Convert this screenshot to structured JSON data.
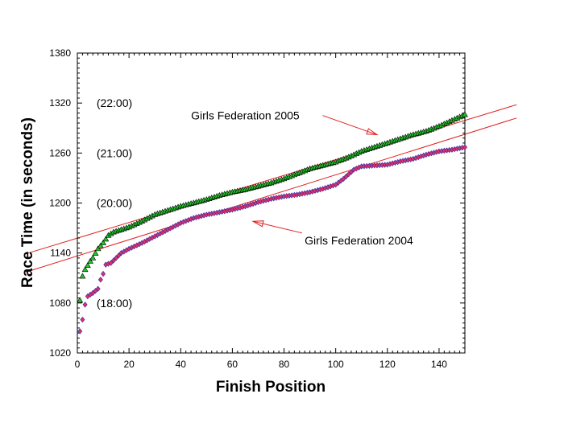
{
  "chart_data": {
    "type": "scatter",
    "xlabel": "Finish Position",
    "ylabel": "Race Time (in seconds)",
    "xlim": [
      0,
      150
    ],
    "ylim": [
      1020,
      1380
    ],
    "x_ticks": [
      0,
      20,
      40,
      60,
      80,
      100,
      120,
      140
    ],
    "y_ticks": [
      1020,
      1080,
      1140,
      1200,
      1260,
      1320,
      1380
    ],
    "grid": false,
    "time_annotations": [
      {
        "label": "(22:00)",
        "value": 1320
      },
      {
        "label": "(21:00)",
        "value": 1260
      },
      {
        "label": "(20:00)",
        "value": 1200
      },
      {
        "label": "(18:00)",
        "value": 1080
      }
    ],
    "series": [
      {
        "name": "Girls Federation 2005",
        "marker": "triangle",
        "fill": "#22c22a",
        "stroke": "#000000",
        "start_position": 1,
        "anchors": [
          [
            1,
            1083
          ],
          [
            2,
            1112
          ],
          [
            3,
            1120
          ],
          [
            4,
            1125
          ],
          [
            5,
            1130
          ],
          [
            6,
            1134
          ],
          [
            8,
            1145
          ],
          [
            10,
            1152
          ],
          [
            12,
            1161
          ],
          [
            14,
            1165
          ],
          [
            16,
            1167
          ],
          [
            20,
            1171
          ],
          [
            25,
            1178
          ],
          [
            30,
            1186
          ],
          [
            35,
            1191
          ],
          [
            40,
            1196
          ],
          [
            45,
            1200
          ],
          [
            50,
            1204
          ],
          [
            55,
            1209
          ],
          [
            60,
            1213
          ],
          [
            65,
            1216
          ],
          [
            70,
            1220
          ],
          [
            75,
            1224
          ],
          [
            80,
            1229
          ],
          [
            85,
            1235
          ],
          [
            90,
            1241
          ],
          [
            95,
            1245
          ],
          [
            100,
            1249
          ],
          [
            105,
            1255
          ],
          [
            110,
            1262
          ],
          [
            115,
            1267
          ],
          [
            120,
            1272
          ],
          [
            125,
            1277
          ],
          [
            130,
            1282
          ],
          [
            135,
            1286
          ],
          [
            140,
            1292
          ],
          [
            145,
            1299
          ],
          [
            150,
            1306
          ]
        ]
      },
      {
        "name": "Girls Federation 2004",
        "marker": "diamond",
        "fill": "#e03060",
        "stroke": "#2a2ab0",
        "start_position": 1,
        "anchors": [
          [
            1,
            1046
          ],
          [
            2,
            1060
          ],
          [
            3,
            1078
          ],
          [
            4,
            1088
          ],
          [
            6,
            1092
          ],
          [
            8,
            1097
          ],
          [
            9,
            1108
          ],
          [
            10,
            1115
          ],
          [
            11,
            1126
          ],
          [
            13,
            1128
          ],
          [
            15,
            1134
          ],
          [
            17,
            1140
          ],
          [
            20,
            1145
          ],
          [
            25,
            1152
          ],
          [
            30,
            1160
          ],
          [
            35,
            1168
          ],
          [
            40,
            1176
          ],
          [
            45,
            1182
          ],
          [
            50,
            1186
          ],
          [
            55,
            1189
          ],
          [
            60,
            1192
          ],
          [
            65,
            1196
          ],
          [
            70,
            1201
          ],
          [
            75,
            1205
          ],
          [
            80,
            1208
          ],
          [
            85,
            1210
          ],
          [
            90,
            1213
          ],
          [
            95,
            1217
          ],
          [
            100,
            1222
          ],
          [
            103,
            1229
          ],
          [
            107,
            1240
          ],
          [
            110,
            1244
          ],
          [
            115,
            1245
          ],
          [
            120,
            1246
          ],
          [
            125,
            1250
          ],
          [
            130,
            1253
          ],
          [
            135,
            1258
          ],
          [
            140,
            1262
          ],
          [
            145,
            1264
          ],
          [
            150,
            1267
          ]
        ]
      }
    ],
    "trend_lines": [
      {
        "name": "upper-trend-line",
        "color": "#e02020",
        "from": [
          -20,
          1139
        ],
        "to": [
          170,
          1318
        ]
      },
      {
        "name": "lower-trend-line",
        "color": "#e02020",
        "from": [
          -20,
          1117
        ],
        "to": [
          170,
          1302
        ]
      }
    ],
    "annotations": [
      {
        "text": "Girls Federation 2005",
        "pointer_from": [
          95,
          1305
        ],
        "pointer_to": [
          116,
          1282
        ],
        "text_x": 44,
        "text_y": 1305
      },
      {
        "text": "Girls Federation 2004",
        "pointer_from": [
          87,
          1164
        ],
        "pointer_to": [
          68,
          1178
        ],
        "text_x": 88,
        "text_y": 1155
      }
    ]
  }
}
